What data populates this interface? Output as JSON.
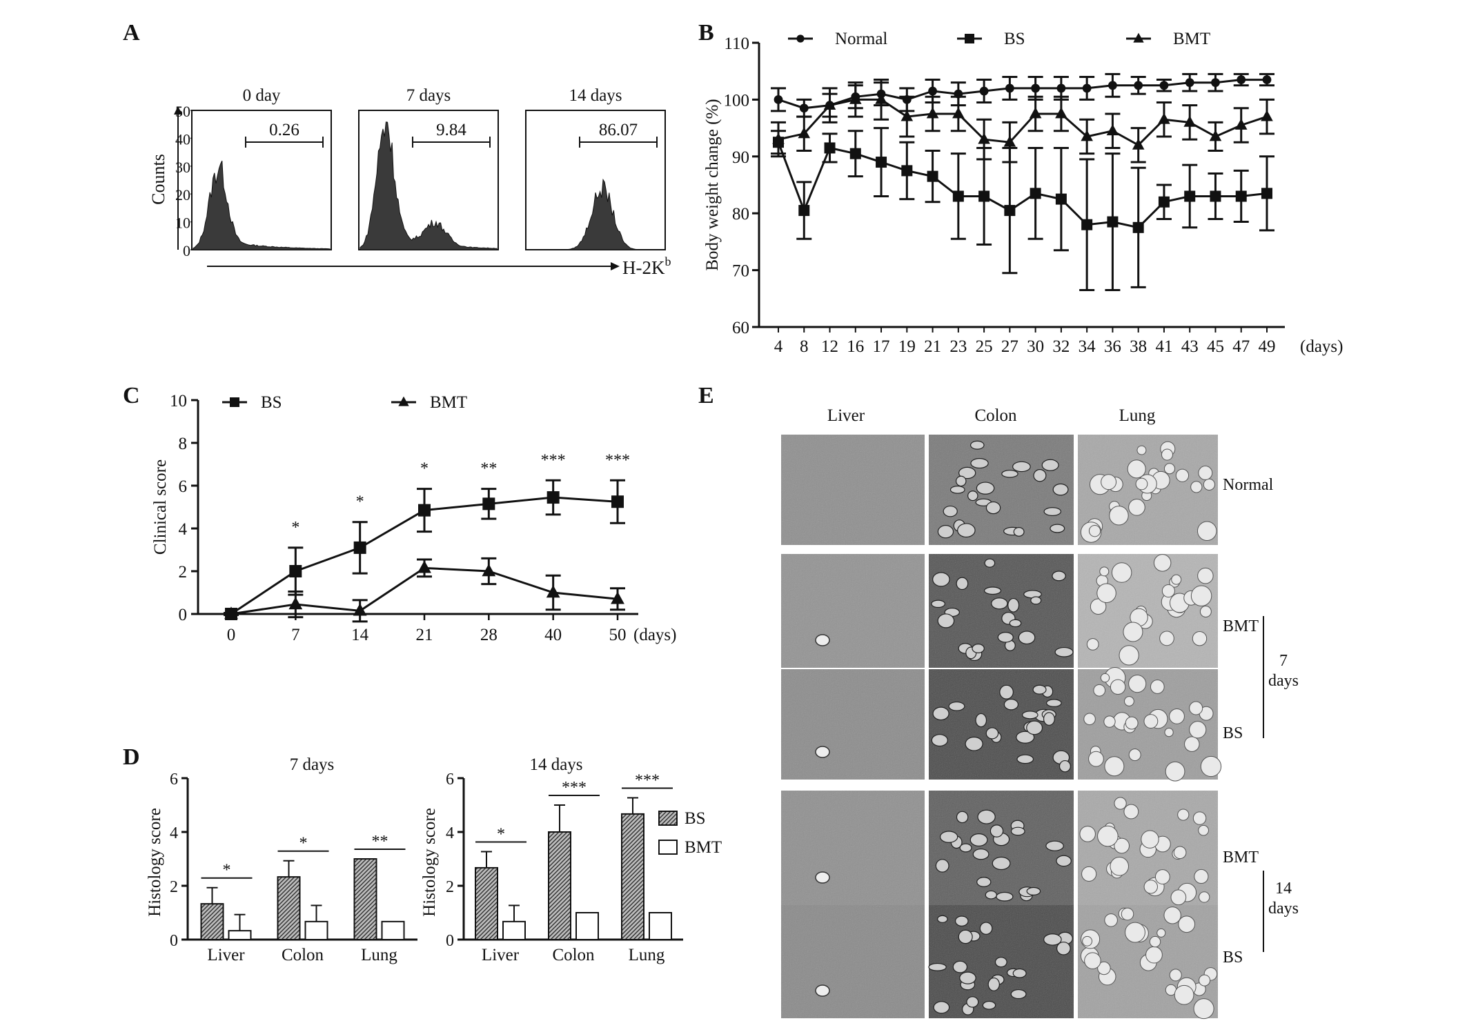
{
  "panels": {
    "A": {
      "label": "A",
      "ylabel": "Counts",
      "xlabel_main": "H-2K",
      "xlabel_sup": "b",
      "yticks": [
        "0",
        "10",
        "20",
        "30",
        "40",
        "50"
      ],
      "histograms": [
        {
          "title": "0 day",
          "gate_value": "0.26",
          "peaks": [
            {
              "center": 0.18,
              "height": 28
            }
          ]
        },
        {
          "title": "7 days",
          "gate_value": "9.84",
          "peaks": [
            {
              "center": 0.18,
              "height": 43
            },
            {
              "center": 0.55,
              "height": 8
            }
          ]
        },
        {
          "title": "14 days",
          "gate_value": "86.07",
          "peaks": [
            {
              "center": 0.55,
              "height": 22
            }
          ]
        }
      ]
    },
    "B": {
      "label": "B"
    },
    "C": {
      "label": "C"
    },
    "D": {
      "label": "D"
    },
    "E": {
      "label": "E",
      "columns": [
        "Liver",
        "Colon",
        "Lung"
      ],
      "row_labels": {
        "normal": "Normal",
        "bmt7": "BMT",
        "bs7": "BS",
        "bmt14": "BMT",
        "bs14": "BS"
      },
      "group_7": "7",
      "group_7_unit": "days",
      "group_14": "14",
      "group_14_unit": "days"
    }
  },
  "chart_data": [
    {
      "panel": "B",
      "type": "line",
      "ylabel": "Body weight change (%)",
      "xlabel": "(days)",
      "categories": [
        "4",
        "8",
        "12",
        "16",
        "17",
        "19",
        "21",
        "23",
        "25",
        "27",
        "30",
        "32",
        "34",
        "36",
        "38",
        "41",
        "43",
        "45",
        "47",
        "49"
      ],
      "ylim": [
        60,
        110
      ],
      "yticks": [
        60,
        70,
        80,
        90,
        100,
        110
      ],
      "legend_position": "top",
      "series": [
        {
          "name": "Normal",
          "marker": "circle",
          "values": [
            100,
            98.5,
            99,
            100.5,
            101,
            100,
            101.5,
            101,
            101.5,
            102,
            102,
            102,
            102,
            102.5,
            102.5,
            102.5,
            103,
            103,
            103.5,
            103.5
          ],
          "errors": [
            2,
            1.5,
            2,
            2,
            2,
            2,
            2,
            2,
            2,
            2,
            2,
            2,
            2,
            2,
            1.5,
            1,
            1.5,
            1.5,
            1,
            1
          ]
        },
        {
          "name": "BS",
          "marker": "square",
          "values": [
            92.5,
            80.5,
            91.5,
            90.5,
            89,
            87.5,
            86.5,
            83,
            83,
            80.5,
            83.5,
            82.5,
            78,
            78.5,
            77.5,
            82,
            83,
            83,
            83,
            83.5
          ],
          "errors": [
            2,
            5,
            2.5,
            4,
            6,
            5,
            4.5,
            7.5,
            8.5,
            11,
            8,
            9,
            11.5,
            12,
            10.5,
            3,
            5.5,
            4,
            4.5,
            6.5
          ]
        },
        {
          "name": "BMT",
          "marker": "triangle",
          "values": [
            93,
            94,
            99,
            100,
            100,
            97,
            97.5,
            97.5,
            93,
            92.5,
            97.5,
            97.5,
            93.5,
            94.5,
            92,
            96.5,
            96,
            93.5,
            95.5,
            97
          ],
          "errors": [
            3,
            3,
            3,
            3,
            3.5,
            3.5,
            3,
            3,
            3.5,
            3.5,
            3,
            3,
            3,
            3,
            3,
            3,
            3,
            2.5,
            3,
            3
          ]
        }
      ]
    },
    {
      "panel": "C",
      "type": "line",
      "ylabel": "Clinical score",
      "xlabel": "(days)",
      "categories": [
        "0",
        "7",
        "14",
        "21",
        "28",
        "40",
        "50"
      ],
      "ylim": [
        0,
        10
      ],
      "yticks": [
        0,
        2,
        4,
        6,
        8,
        10
      ],
      "legend_position": "top",
      "significance": [
        "",
        "*",
        "*",
        "*",
        "**",
        "***",
        "***"
      ],
      "series": [
        {
          "name": "BS",
          "marker": "square",
          "values": [
            0,
            2,
            3.1,
            4.85,
            5.15,
            5.45,
            5.25
          ],
          "errors": [
            0.05,
            1.1,
            1.2,
            1.0,
            0.7,
            0.8,
            1.0
          ]
        },
        {
          "name": "BMT",
          "marker": "triangle",
          "values": [
            0,
            0.45,
            0.15,
            2.15,
            2.0,
            1.0,
            0.7
          ],
          "errors": [
            0.05,
            0.6,
            0.5,
            0.4,
            0.6,
            0.8,
            0.5
          ]
        }
      ]
    },
    {
      "panel": "D",
      "type": "bar",
      "title": "7 days",
      "ylabel": "Histology score",
      "categories": [
        "Liver",
        "Colon",
        "Lung"
      ],
      "ylim": [
        0,
        6
      ],
      "yticks": [
        0,
        2,
        4,
        6
      ],
      "significance": [
        "*",
        "*",
        "**"
      ],
      "series": [
        {
          "name": "BS",
          "values": [
            1.33,
            2.33,
            3.0
          ],
          "errors": [
            0.6,
            0.6,
            0
          ]
        },
        {
          "name": "BMT",
          "values": [
            0.33,
            0.67,
            0.67
          ],
          "errors": [
            0.6,
            0.6,
            0
          ]
        }
      ]
    },
    {
      "panel": "D",
      "type": "bar",
      "title": "14 days",
      "ylabel": "Histology score",
      "categories": [
        "Liver",
        "Colon",
        "Lung"
      ],
      "ylim": [
        0,
        6
      ],
      "yticks": [
        0,
        2,
        4,
        6
      ],
      "significance": [
        "*",
        "***",
        "***"
      ],
      "legend_position": "right",
      "series": [
        {
          "name": "BS",
          "values": [
            2.67,
            4.0,
            4.67
          ],
          "errors": [
            0.6,
            1.0,
            0.6
          ]
        },
        {
          "name": "BMT",
          "values": [
            0.67,
            1.0,
            1.0
          ],
          "errors": [
            0.6,
            0,
            0
          ]
        }
      ]
    }
  ]
}
